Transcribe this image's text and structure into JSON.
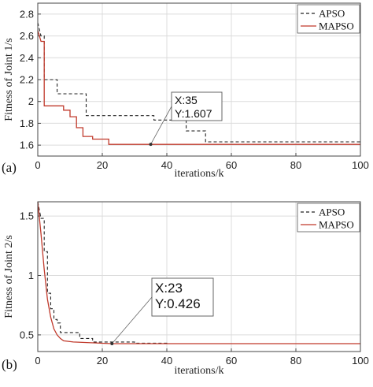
{
  "chart_data": [
    {
      "type": "line",
      "panel_label": "(a)",
      "xlabel": "iterations/k",
      "ylabel": "Fitness of Joint 1/s",
      "xlim": [
        0,
        100
      ],
      "ylim": [
        1.5,
        2.9
      ],
      "xticks": [
        0,
        20,
        40,
        60,
        80,
        100
      ],
      "yticks": [
        1.6,
        1.8,
        2.0,
        2.2,
        2.4,
        2.6,
        2.8
      ],
      "ytick_labels": [
        "1.6",
        "1.8",
        "2",
        "2.2",
        "2.4",
        "2.6",
        "2.8"
      ],
      "grid": true,
      "legend_position": "top-right",
      "series": [
        {
          "name": "APSO",
          "color": "#222222",
          "dash": true,
          "x": [
            0,
            1,
            2,
            2,
            6,
            6,
            15,
            15,
            36,
            36,
            46,
            46,
            52,
            52,
            100
          ],
          "y": [
            2.72,
            2.6,
            2.6,
            2.2,
            2.2,
            2.07,
            2.07,
            1.87,
            1.87,
            1.83,
            1.83,
            1.73,
            1.73,
            1.63,
            1.63
          ]
        },
        {
          "name": "MAPSO",
          "color": "#c0392b",
          "dash": false,
          "x": [
            0,
            1,
            2,
            2,
            8,
            8,
            10,
            10,
            12,
            12,
            14,
            14,
            17,
            17,
            22,
            22,
            100
          ],
          "y": [
            2.65,
            2.55,
            2.55,
            1.96,
            1.96,
            1.92,
            1.92,
            1.86,
            1.86,
            1.76,
            1.76,
            1.68,
            1.68,
            1.655,
            1.655,
            1.607,
            1.607
          ]
        }
      ],
      "annotation": {
        "x": 35,
        "y": 1.607,
        "lines": [
          "X:35",
          "Y:1.607"
        ]
      }
    },
    {
      "type": "line",
      "panel_label": "(b)",
      "xlabel": "iterations/k",
      "ylabel": "Fitness of Joint 2/s",
      "xlim": [
        0,
        100
      ],
      "ylim": [
        0.36,
        1.62
      ],
      "xticks": [
        0,
        20,
        40,
        60,
        80,
        100
      ],
      "yticks": [
        0.5,
        1.0,
        1.5
      ],
      "ytick_labels": [
        "0.5",
        "1",
        "1.5"
      ],
      "grid": true,
      "legend_position": "top-right",
      "series": [
        {
          "name": "APSO",
          "color": "#222222",
          "dash": true,
          "x": [
            0,
            1,
            2,
            2,
            3,
            3,
            4,
            4,
            5,
            5,
            6,
            6,
            7,
            7,
            13,
            13,
            17,
            17,
            30,
            30,
            40,
            40,
            100
          ],
          "y": [
            1.62,
            1.48,
            1.48,
            1.2,
            1.2,
            0.85,
            0.85,
            0.72,
            0.72,
            0.63,
            0.63,
            0.6,
            0.6,
            0.52,
            0.52,
            0.47,
            0.47,
            0.44,
            0.44,
            0.43,
            0.43,
            0.426,
            0.426
          ]
        },
        {
          "name": "MAPSO",
          "color": "#c0392b",
          "dash": false,
          "x": [
            0,
            1,
            2,
            3,
            4,
            5,
            6,
            7,
            8,
            11,
            23,
            100
          ],
          "y": [
            1.62,
            1.35,
            1.05,
            0.8,
            0.65,
            0.55,
            0.5,
            0.47,
            0.45,
            0.44,
            0.426,
            0.426
          ]
        }
      ],
      "annotation": {
        "x": 23,
        "y": 0.426,
        "lines": [
          "X:23",
          "Y:0.426"
        ]
      }
    }
  ]
}
